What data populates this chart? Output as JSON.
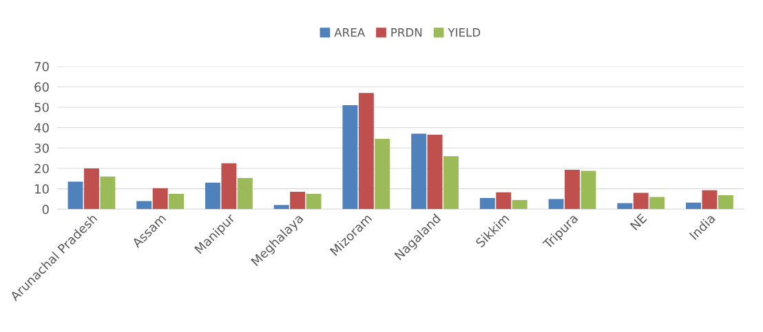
{
  "chart_data": {
    "type": "bar",
    "categories": [
      "Arunachal Pradesh",
      "Assam",
      "Manipur",
      "Meghalaya",
      "Mizoram",
      "Nagaland",
      "Sikkim",
      "Tripura",
      "NE",
      "India"
    ],
    "series": [
      {
        "name": "AREA",
        "color": "#4f81bd",
        "values": [
          13.5,
          4,
          13,
          2,
          51,
          37,
          5.5,
          5,
          3,
          3.2
        ]
      },
      {
        "name": "PRDN",
        "color": "#c0504d",
        "values": [
          20,
          10.3,
          22.5,
          8.5,
          57,
          36.5,
          8.3,
          19.3,
          8,
          9.3
        ]
      },
      {
        "name": "YIELD",
        "color": "#9bbb59",
        "values": [
          16,
          7.5,
          15.3,
          7.5,
          34.5,
          26,
          4.5,
          18.8,
          6,
          6.8
        ]
      }
    ],
    "ylim": [
      0,
      70
    ],
    "yticks": [
      0,
      10,
      20,
      30,
      40,
      50,
      60,
      70
    ],
    "grid": "y",
    "legend": "top"
  }
}
